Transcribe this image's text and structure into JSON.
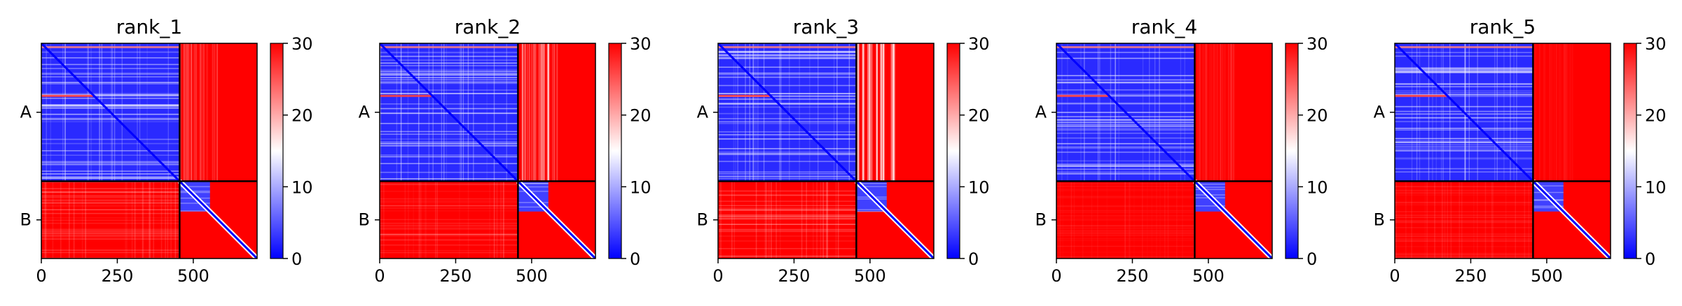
{
  "chart_data": {
    "type": "heatmap",
    "colormap": {
      "low": "#0000ff",
      "mid": "#ffffff",
      "high": "#ff0000"
    },
    "colorbar": {
      "min": 0,
      "max": 30,
      "ticks": [
        "0",
        "10",
        "20",
        "30"
      ]
    },
    "x_range": [
      0,
      710
    ],
    "y_range": [
      0,
      710
    ],
    "chain_boundary": 455,
    "x_ticks": [
      0,
      250,
      500
    ],
    "x_tick_labels": [
      "0",
      "250",
      "500"
    ],
    "chains": [
      "A",
      "B"
    ],
    "panels": [
      {
        "title": "rank_1",
        "ab_red_strength": 0.9,
        "ba_red_strength": 0.85
      },
      {
        "title": "rank_2",
        "ab_red_strength": 0.75,
        "ba_red_strength": 0.9
      },
      {
        "title": "rank_3",
        "ab_red_strength": 0.6,
        "ba_red_strength": 0.85
      },
      {
        "title": "rank_4",
        "ab_red_strength": 0.95,
        "ba_red_strength": 0.95
      },
      {
        "title": "rank_5",
        "ab_red_strength": 0.97,
        "ba_red_strength": 0.92
      }
    ]
  }
}
